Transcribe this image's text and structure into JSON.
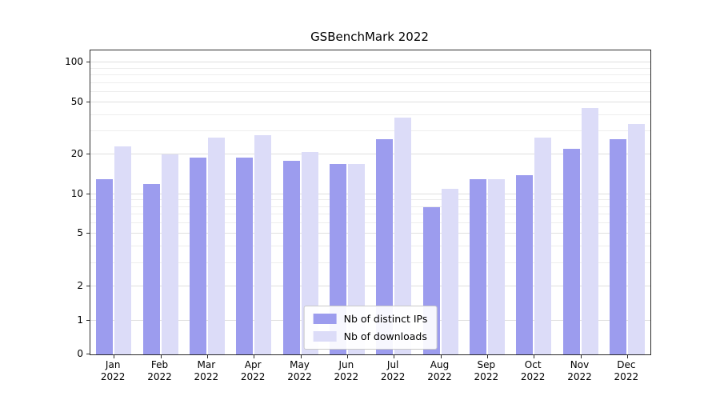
{
  "chart_data": {
    "type": "bar",
    "title": "GSBenchMark 2022",
    "categories": [
      "Jan",
      "Feb",
      "Mar",
      "Apr",
      "May",
      "Jun",
      "Jul",
      "Aug",
      "Sep",
      "Oct",
      "Nov",
      "Dec"
    ],
    "year_label": "2022",
    "series": [
      {
        "name": "Nb of distinct IPs",
        "color": "#9c9cee",
        "values": [
          13,
          12,
          19,
          19,
          18,
          17,
          26,
          8,
          13,
          14,
          22,
          26
        ]
      },
      {
        "name": "Nb of downloads",
        "color": "#dcdcf8",
        "values": [
          23,
          20,
          27,
          28,
          21,
          17,
          38,
          11,
          13,
          27,
          45,
          34
        ]
      }
    ],
    "yticks": [
      0,
      1,
      2,
      5,
      10,
      20,
      50,
      100
    ],
    "y_scale": "symlog",
    "ylim": [
      0,
      100
    ],
    "grid": true,
    "legend_position": "lower center"
  }
}
